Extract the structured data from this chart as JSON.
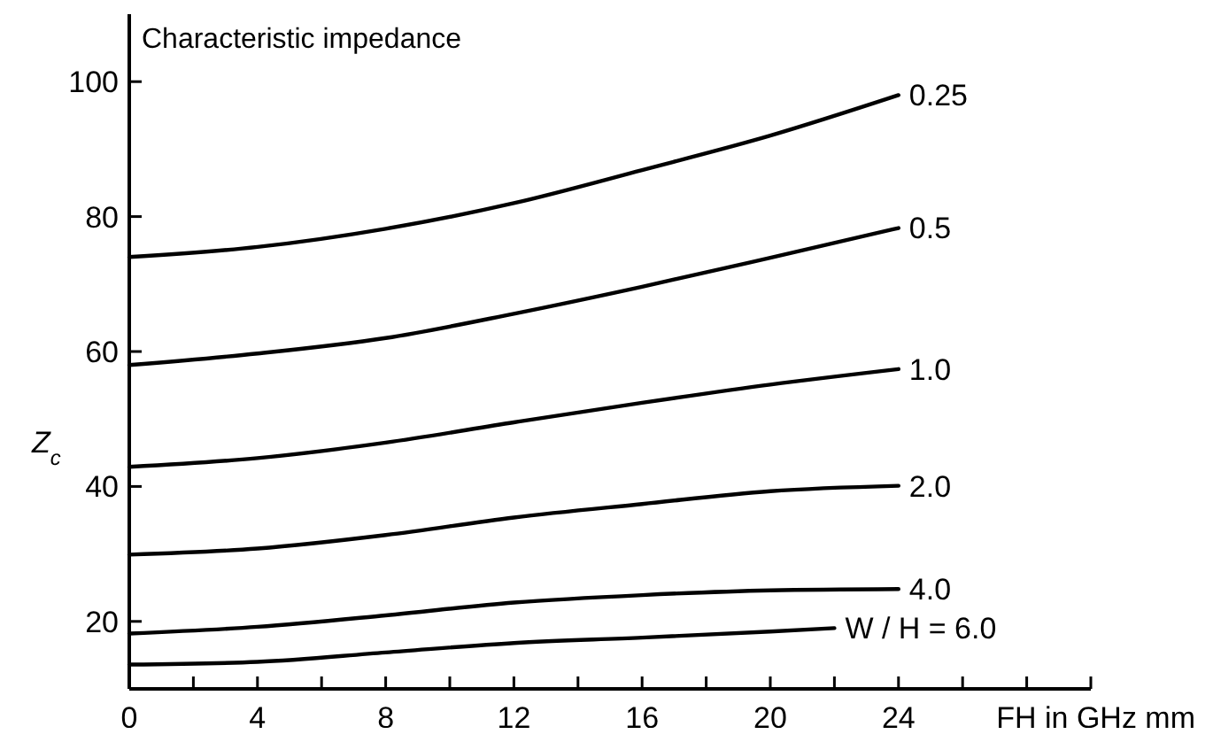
{
  "chart_data": {
    "type": "line",
    "title": "Characteristic impedance",
    "xlabel": "FH in GHz mm",
    "ylabel": "Z$_{c}$",
    "x": [
      0,
      4,
      8,
      12,
      16,
      20,
      24
    ],
    "series": [
      {
        "name": "0.25",
        "color": "#000000",
        "values": [
          74.0,
          75.5,
          78.2,
          82.0,
          86.9,
          92.0,
          98.0
        ]
      },
      {
        "name": "0.5",
        "color": "#000000",
        "values": [
          58.0,
          59.7,
          62.0,
          65.6,
          69.6,
          73.9,
          78.3
        ]
      },
      {
        "name": "1.0",
        "color": "#000000",
        "values": [
          42.9,
          44.2,
          46.5,
          49.5,
          52.4,
          55.1,
          57.4
        ]
      },
      {
        "name": "2.0",
        "color": "#000000",
        "values": [
          29.9,
          30.8,
          32.8,
          35.4,
          37.4,
          39.3,
          40.1
        ]
      },
      {
        "name": "4.0",
        "color": "#000000",
        "values": [
          18.2,
          19.2,
          20.9,
          22.8,
          23.9,
          24.6,
          24.8
        ]
      },
      {
        "name": "W / H = 6.0",
        "color": "#000000",
        "x": [
          0,
          4,
          8,
          12,
          16,
          20,
          22
        ],
        "values": [
          13.6,
          14.0,
          15.4,
          16.8,
          17.6,
          18.5,
          19.0
        ]
      }
    ],
    "xlim": [
      0,
      30
    ],
    "ylim": [
      10,
      110
    ],
    "xticks": [
      0,
      {
        "value": 2,
        "label": null
      },
      4,
      {
        "value": 6,
        "label": null
      },
      8,
      {
        "value": 10,
        "label": null
      },
      12,
      {
        "value": 14,
        "label": null
      },
      16,
      {
        "value": 18,
        "label": null
      },
      20,
      {
        "value": 22,
        "label": null
      },
      24,
      {
        "value": 26,
        "label": null
      },
      {
        "value": 28,
        "label": null
      },
      {
        "value": 30,
        "label": null
      }
    ],
    "yticks": [
      20,
      40,
      60,
      80,
      100
    ],
    "grid": false,
    "legend": false,
    "marker": "none",
    "line_style": "solid"
  }
}
